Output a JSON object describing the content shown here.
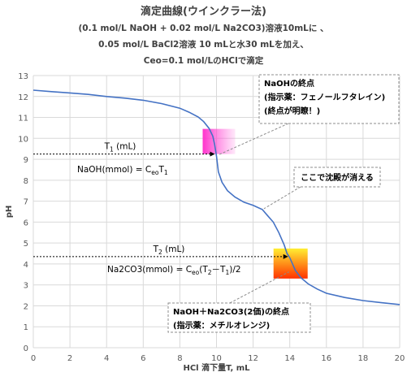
{
  "chart_data": {
    "type": "line",
    "title": "滴定曲線(ウインクラー法)",
    "subtitle": [
      "(0.1 mol/L NaOH + 0.02 mol/L Na2CO3)溶液10mLに 、",
      "0.05 mol/L BaCl2溶液 10 mLと水30 mLを加え、",
      "Ceo=0.1 mol/LのHClで滴定"
    ],
    "xlabel": "HCl 滴下量T, mL",
    "ylabel": "pH",
    "xlim": [
      0,
      20
    ],
    "ylim": [
      0,
      13
    ],
    "xticks": [
      "0",
      "2",
      "4",
      "6",
      "8",
      "10",
      "12",
      "14",
      "16",
      "18",
      "20"
    ],
    "yticks": [
      "0",
      "1",
      "2",
      "3",
      "4",
      "5",
      "6",
      "7",
      "8",
      "9",
      "10",
      "11",
      "12",
      "13"
    ],
    "grid": true,
    "series": [
      {
        "color": "#4472C4",
        "x": [
          0,
          1,
          2,
          3,
          4,
          5,
          6,
          7,
          8,
          8.5,
          9,
          9.3,
          9.6,
          9.8,
          9.9,
          10,
          10.1,
          10.3,
          10.6,
          11,
          11.5,
          12,
          12.5,
          12.8,
          13.1,
          13.4,
          13.7,
          13.85,
          14,
          14.15,
          14.3,
          14.6,
          15,
          15.5,
          16,
          17,
          18,
          19,
          20
        ],
        "y": [
          12.3,
          12.23,
          12.17,
          12.1,
          12.0,
          11.92,
          11.82,
          11.66,
          11.44,
          11.25,
          11.02,
          10.8,
          10.47,
          10.1,
          9.7,
          9.15,
          8.4,
          7.9,
          7.5,
          7.2,
          6.95,
          6.8,
          6.6,
          6.3,
          6.0,
          5.5,
          4.9,
          4.5,
          4.3,
          4.0,
          3.7,
          3.35,
          3.05,
          2.8,
          2.6,
          2.4,
          2.25,
          2.15,
          2.06
        ]
      }
    ],
    "markers": [
      {
        "x": 10,
        "y": 9.25,
        "label_main": "T",
        "label_sub": "1",
        "label_tail": "(mL)"
      },
      {
        "x": 14,
        "y": 4.35,
        "label_main": "T",
        "label_sub": "2",
        "label_tail": "(mL)"
      }
    ],
    "equations": {
      "naoh": {
        "main": "NaOH(mmol)",
        "eq": "=",
        "c": "C",
        "c_sub": "eo",
        "t": "T",
        "t_sub": "1"
      },
      "na2co3": {
        "main": "Na2CO3(mmol)",
        "eq": "=",
        "c": "C",
        "c_sub": "eo",
        "open": "(T",
        "t2_sub": "2",
        "minus": "－T",
        "t1_sub": "1",
        "close": ")/2"
      }
    },
    "callouts": [
      {
        "lines": [
          "NaOHの終点",
          "(指示薬：フェノールフタレイン)",
          "(終点が明瞭！)"
        ]
      },
      {
        "lines": [
          "ここで沈殿が消える"
        ]
      },
      {
        "lines": [
          "NaOH＋Na2CO3(2価)の終点",
          "(指示薬：メチルオレンジ)"
        ]
      }
    ],
    "colors": {
      "line": "#4472C4",
      "grid": "#d9d9d9",
      "highlight1": "#ff33cc",
      "highlight2_top": "#ffee33",
      "highlight2_bottom": "#ff3300"
    }
  }
}
